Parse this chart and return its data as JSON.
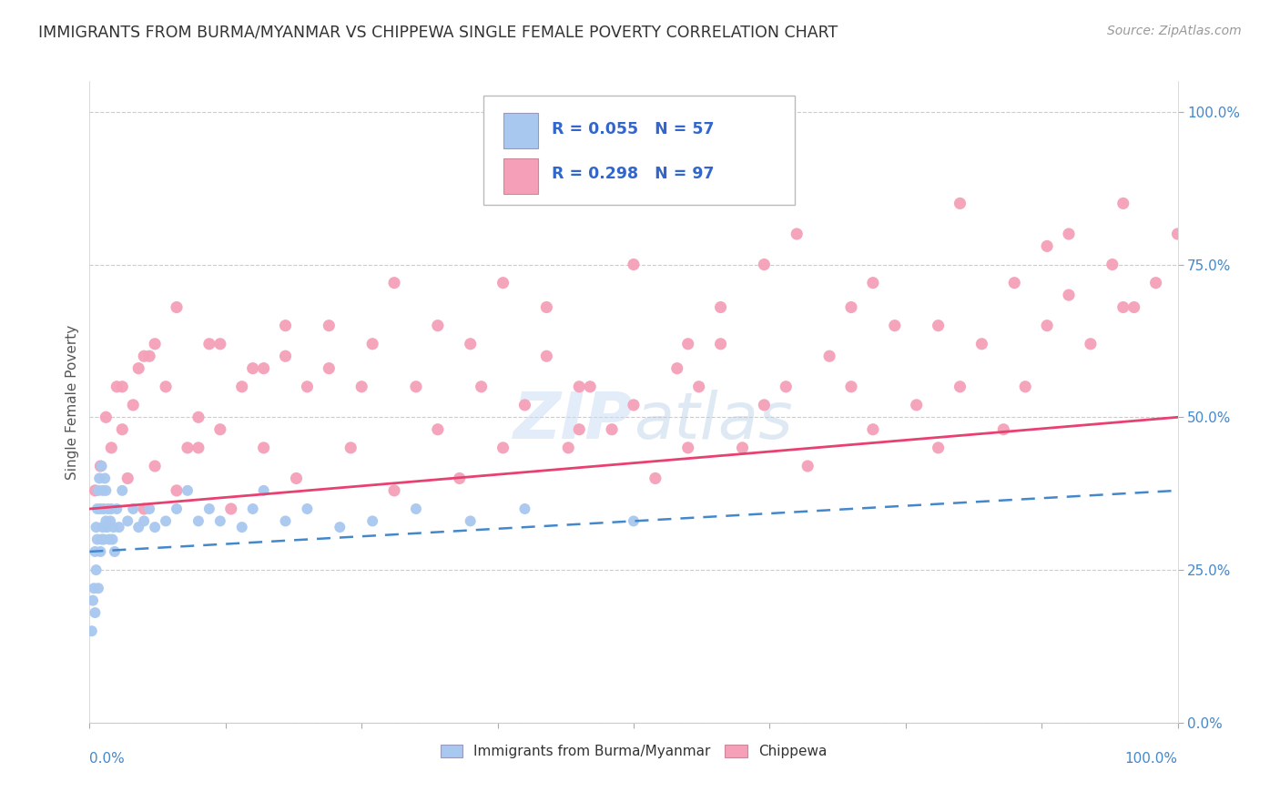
{
  "title": "IMMIGRANTS FROM BURMA/MYANMAR VS CHIPPEWA SINGLE FEMALE POVERTY CORRELATION CHART",
  "source": "Source: ZipAtlas.com",
  "ylabel": "Single Female Poverty",
  "legend_r1": "R = 0.055",
  "legend_n1": "N = 57",
  "legend_r2": "R = 0.298",
  "legend_n2": "N = 97",
  "series1_color": "#a8c8f0",
  "series2_color": "#f5a0b8",
  "trend1_color": "#4488cc",
  "trend2_color": "#e84070",
  "series1_name": "Immigrants from Burma/Myanmar",
  "series2_name": "Chippewa",
  "series1_x": [
    0.2,
    0.3,
    0.4,
    0.5,
    0.5,
    0.6,
    0.6,
    0.7,
    0.7,
    0.8,
    0.8,
    0.9,
    1.0,
    1.0,
    1.1,
    1.1,
    1.2,
    1.2,
    1.3,
    1.3,
    1.4,
    1.5,
    1.5,
    1.6,
    1.7,
    1.8,
    1.9,
    2.0,
    2.1,
    2.2,
    2.3,
    2.5,
    2.7,
    3.0,
    3.5,
    4.0,
    4.5,
    5.0,
    5.5,
    6.0,
    7.0,
    8.0,
    9.0,
    10.0,
    11.0,
    12.0,
    14.0,
    15.0,
    16.0,
    18.0,
    20.0,
    23.0,
    26.0,
    30.0,
    35.0,
    40.0,
    50.0
  ],
  "series1_y": [
    15.0,
    20.0,
    22.0,
    18.0,
    28.0,
    25.0,
    32.0,
    35.0,
    30.0,
    22.0,
    38.0,
    40.0,
    28.0,
    35.0,
    30.0,
    42.0,
    32.0,
    38.0,
    35.0,
    30.0,
    40.0,
    33.0,
    38.0,
    32.0,
    35.0,
    30.0,
    33.0,
    35.0,
    30.0,
    32.0,
    28.0,
    35.0,
    32.0,
    38.0,
    33.0,
    35.0,
    32.0,
    33.0,
    35.0,
    32.0,
    33.0,
    35.0,
    38.0,
    33.0,
    35.0,
    33.0,
    32.0,
    35.0,
    38.0,
    33.0,
    35.0,
    32.0,
    33.0,
    35.0,
    33.0,
    35.0,
    33.0
  ],
  "series2_x": [
    0.5,
    1.0,
    1.5,
    2.0,
    2.5,
    3.0,
    3.5,
    4.0,
    4.5,
    5.0,
    5.5,
    6.0,
    7.0,
    8.0,
    9.0,
    10.0,
    11.0,
    12.0,
    13.0,
    14.0,
    15.0,
    16.0,
    18.0,
    19.0,
    20.0,
    22.0,
    24.0,
    26.0,
    28.0,
    30.0,
    32.0,
    34.0,
    36.0,
    38.0,
    40.0,
    42.0,
    44.0,
    46.0,
    48.0,
    50.0,
    52.0,
    54.0,
    55.0,
    56.0,
    58.0,
    60.0,
    62.0,
    64.0,
    66.0,
    68.0,
    70.0,
    72.0,
    74.0,
    76.0,
    78.0,
    80.0,
    82.0,
    84.0,
    86.0,
    88.0,
    90.0,
    92.0,
    94.0,
    96.0,
    98.0,
    5.0,
    8.0,
    12.0,
    16.0,
    22.0,
    28.0,
    35.0,
    42.0,
    50.0,
    58.0,
    65.0,
    72.0,
    80.0,
    88.0,
    95.0,
    3.0,
    6.0,
    10.0,
    18.0,
    25.0,
    32.0,
    38.0,
    45.0,
    55.0,
    62.0,
    70.0,
    78.0,
    85.0,
    90.0,
    95.0,
    100.0,
    45.0
  ],
  "series2_y": [
    38.0,
    42.0,
    50.0,
    45.0,
    55.0,
    48.0,
    40.0,
    52.0,
    58.0,
    35.0,
    60.0,
    42.0,
    55.0,
    38.0,
    45.0,
    50.0,
    62.0,
    48.0,
    35.0,
    55.0,
    58.0,
    45.0,
    60.0,
    40.0,
    55.0,
    58.0,
    45.0,
    62.0,
    38.0,
    55.0,
    48.0,
    40.0,
    55.0,
    45.0,
    52.0,
    60.0,
    45.0,
    55.0,
    48.0,
    52.0,
    40.0,
    58.0,
    45.0,
    55.0,
    62.0,
    45.0,
    52.0,
    55.0,
    42.0,
    60.0,
    55.0,
    48.0,
    65.0,
    52.0,
    45.0,
    55.0,
    62.0,
    48.0,
    55.0,
    65.0,
    70.0,
    62.0,
    75.0,
    68.0,
    72.0,
    60.0,
    68.0,
    62.0,
    58.0,
    65.0,
    72.0,
    62.0,
    68.0,
    75.0,
    68.0,
    80.0,
    72.0,
    85.0,
    78.0,
    68.0,
    55.0,
    62.0,
    45.0,
    65.0,
    55.0,
    65.0,
    72.0,
    55.0,
    62.0,
    75.0,
    68.0,
    65.0,
    72.0,
    80.0,
    85.0,
    80.0,
    48.0
  ],
  "trend1_x0": 0,
  "trend1_x1": 100,
  "trend1_y0": 28.0,
  "trend1_y1": 38.0,
  "trend2_x0": 0,
  "trend2_x1": 100,
  "trend2_y0": 35.0,
  "trend2_y1": 50.0,
  "ytick_labels": [
    "0.0%",
    "25.0%",
    "50.0%",
    "75.0%",
    "100.0%"
  ],
  "ytick_values": [
    0,
    25,
    50,
    75,
    100
  ],
  "ylim": [
    0,
    105
  ],
  "xlim": [
    0,
    100
  ]
}
